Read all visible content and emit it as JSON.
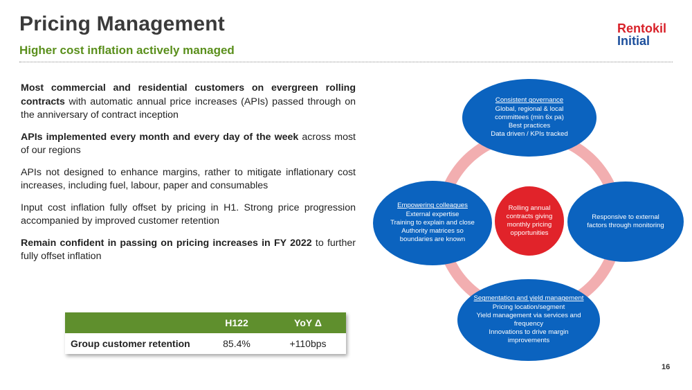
{
  "header": {
    "title": "Pricing Management",
    "subtitle": "Higher cost inflation actively managed",
    "logo_line1": "Rentokil",
    "logo_line2": "Initial"
  },
  "bullets": [
    {
      "bold": "Most commercial and residential customers on evergreen rolling contracts",
      "text": " with automatic annual price increases (APIs) passed through on the anniversary of contract inception"
    },
    {
      "bold": "APIs implemented every month and every day of the week",
      "text": " across most of our regions"
    },
    {
      "bold": "",
      "text": "APIs not designed to enhance margins, rather to mitigate inflationary cost increases, including fuel, labour, paper and consumables"
    },
    {
      "bold": "",
      "text": "Input cost inflation fully offset by pricing in H1. Strong price progression accompanied by improved customer retention"
    },
    {
      "bold": "Remain confident in passing on pricing increases in FY 2022",
      "text": " to further fully offset inflation"
    }
  ],
  "table": {
    "headers": [
      "",
      "H122",
      "YoY Δ"
    ],
    "row": {
      "label": "Group customer retention",
      "value": "85.4%",
      "change": "+110bps"
    }
  },
  "diagram": {
    "center": "Rolling annual contracts giving monthly pricing opportunities",
    "top": {
      "heading": "Consistent governance",
      "lines": [
        "Global, regional & local committees (min 6x pa)",
        "Best practices",
        "Data driven / KPIs tracked"
      ]
    },
    "right": {
      "heading": "",
      "lines": [
        "Responsive to external factors through monitoring"
      ]
    },
    "bottom": {
      "heading": "Segmentation and yield management",
      "lines": [
        "Pricing location/segment",
        "Yield management via services and frequency",
        "Innovations to drive margin improvements"
      ]
    },
    "left": {
      "heading": "Empowering colleagues",
      "lines": [
        "External expertise",
        "Training to explain and close",
        "Authority matrices so boundaries are known"
      ]
    },
    "colors": {
      "node": "#0b63bf",
      "center": "#e1232a",
      "ring": "#f2aeb0"
    }
  },
  "page_number": "16"
}
